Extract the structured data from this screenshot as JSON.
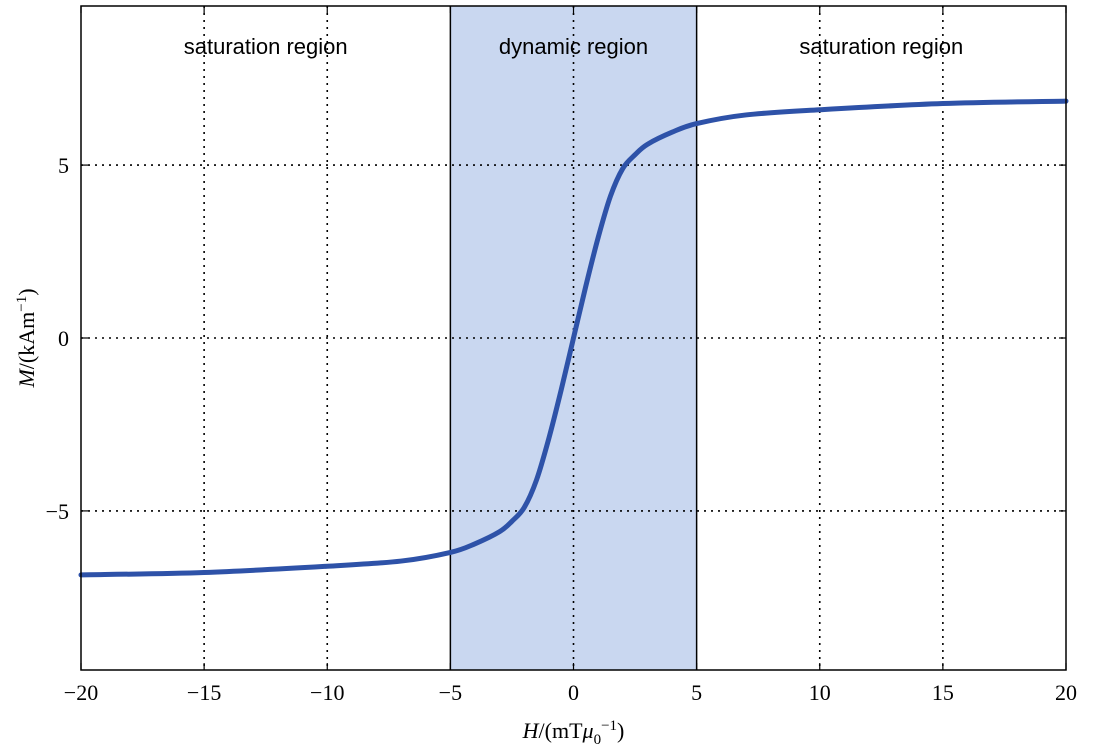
{
  "chart_data": {
    "type": "line",
    "title": "",
    "xlabel": "H/(mTμ0−1)",
    "ylabel": "M/(kAm−1)",
    "xlim": [
      -20,
      20
    ],
    "ylim": [
      -9.6,
      9.6
    ],
    "x_ticks": [
      -20,
      -15,
      -10,
      -5,
      0,
      5,
      10,
      15,
      20
    ],
    "x_tick_labels": [
      "−20",
      "−15",
      "−10",
      "−5",
      "0",
      "5",
      "10",
      "15",
      "20"
    ],
    "y_ticks": [
      -5,
      0,
      5
    ],
    "y_tick_labels": [
      "−5",
      "0",
      "5"
    ],
    "grid": true,
    "grid_style": "dotted",
    "shaded_region": {
      "x_range": [
        -5,
        5
      ],
      "color": "#c9d7f0"
    },
    "regions": [
      {
        "label": "saturation region",
        "x_center": -12.5
      },
      {
        "label": "dynamic region",
        "x_center": 0
      },
      {
        "label": "saturation region",
        "x_center": 12.5
      }
    ],
    "series": [
      {
        "color": "#2e52a8",
        "x": [
          -20,
          -15,
          -10,
          -7,
          -5,
          -4,
          -3,
          -2.5,
          -2,
          -1.5,
          -1,
          -0.5,
          0,
          0.5,
          1,
          1.5,
          2,
          2.5,
          3,
          4,
          5,
          7,
          10,
          15,
          20
        ],
        "y": [
          -6.85,
          -6.78,
          -6.6,
          -6.45,
          -6.2,
          -5.95,
          -5.6,
          -5.3,
          -4.9,
          -4.1,
          -2.9,
          -1.5,
          0,
          1.5,
          2.9,
          4.1,
          4.9,
          5.3,
          5.6,
          5.95,
          6.2,
          6.45,
          6.6,
          6.78,
          6.85
        ]
      }
    ]
  }
}
